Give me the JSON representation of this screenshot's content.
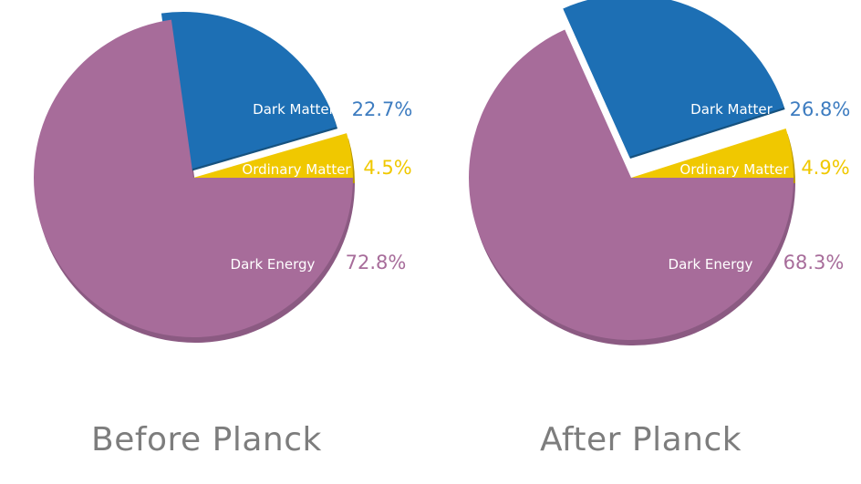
{
  "colors": {
    "dark_energy": "#a76c9a",
    "dark_energy_side": "#8b5a82",
    "dark_matter": "#1d6fb4",
    "dark_matter_edge": "#16527f",
    "ordinary_matter": "#f0c800",
    "ordinary_matter_side": "#b89700",
    "caption": "#7d7d7d"
  },
  "chart_data": [
    {
      "type": "pie",
      "title": "Before Planck",
      "slices": [
        {
          "key": "dark_matter",
          "label": "Dark Matter",
          "value": 22.7,
          "value_label": "22.7%",
          "color": "#1d6fb4",
          "exploded": true
        },
        {
          "key": "ordinary_matter",
          "label": "Ordinary Matter",
          "value": 4.5,
          "value_label": "4.5%",
          "color": "#f0c800",
          "exploded": false
        },
        {
          "key": "dark_energy",
          "label": "Dark Energy",
          "value": 72.8,
          "value_label": "72.8%",
          "color": "#a76c9a",
          "exploded": false
        }
      ]
    },
    {
      "type": "pie",
      "title": "After Planck",
      "slices": [
        {
          "key": "dark_matter",
          "label": "Dark Matter",
          "value": 26.8,
          "value_label": "26.8%",
          "color": "#1d6fb4",
          "exploded": true
        },
        {
          "key": "ordinary_matter",
          "label": "Ordinary Matter",
          "value": 4.9,
          "value_label": "4.9%",
          "color": "#f0c800",
          "exploded": false
        },
        {
          "key": "dark_energy",
          "label": "Dark Energy",
          "value": 68.3,
          "value_label": "68.3%",
          "color": "#a76c9a",
          "exploded": false
        }
      ]
    }
  ]
}
